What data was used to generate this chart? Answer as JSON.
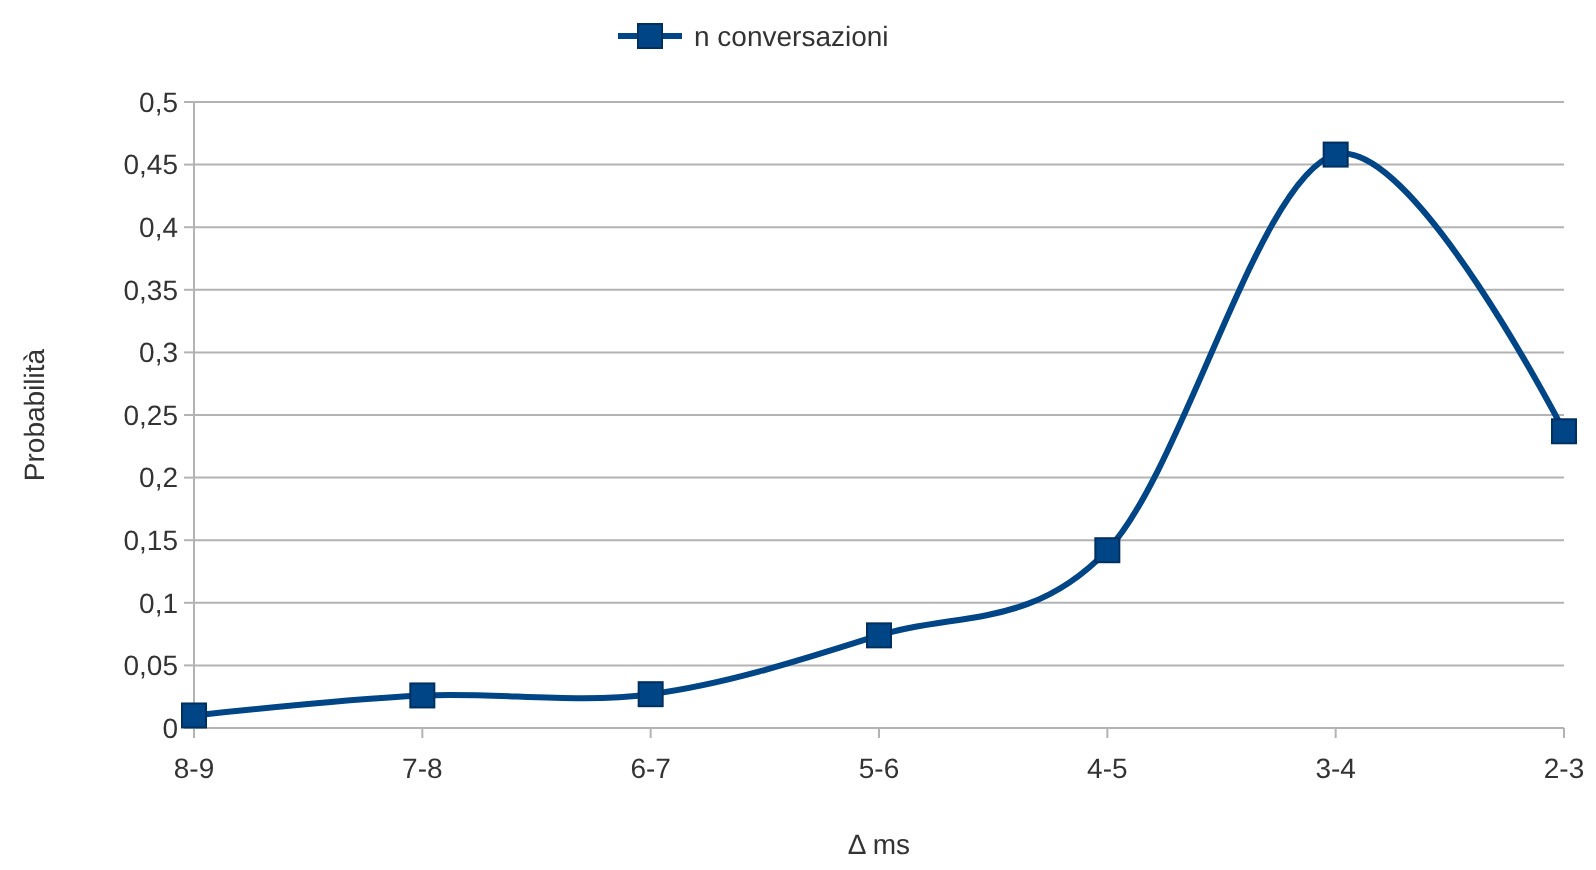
{
  "chart_data": {
    "type": "line",
    "xlabel": "Δ ms",
    "ylabel": "Probabilità",
    "categories": [
      "8-9",
      "7-8",
      "6-7",
      "5-6",
      "4-5",
      "3-4",
      "2-3"
    ],
    "series": [
      {
        "name": "n conversazioni",
        "color": "#004586",
        "values": [
          0.01,
          0.026,
          0.027,
          0.074,
          0.142,
          0.458,
          0.237
        ]
      }
    ],
    "ylim": [
      0,
      0.5
    ],
    "yticks": [
      0,
      {
        "value": 0.05,
        "label": "0,05"
      },
      {
        "value": 0.1,
        "label": "0,1"
      },
      {
        "value": 0.15,
        "label": "0,15"
      },
      {
        "value": 0.2,
        "label": "0,2"
      },
      {
        "value": 0.25,
        "label": "0,25"
      },
      {
        "value": 0.3,
        "label": "0,3"
      },
      {
        "value": 0.35,
        "label": "0,35"
      },
      {
        "value": 0.4,
        "label": "0,4"
      },
      {
        "value": 0.45,
        "label": "0,45"
      },
      {
        "value": 0.5,
        "label": "0,5"
      }
    ],
    "grid": "y",
    "legend": "top",
    "marker": "square",
    "line_style": "solid"
  }
}
